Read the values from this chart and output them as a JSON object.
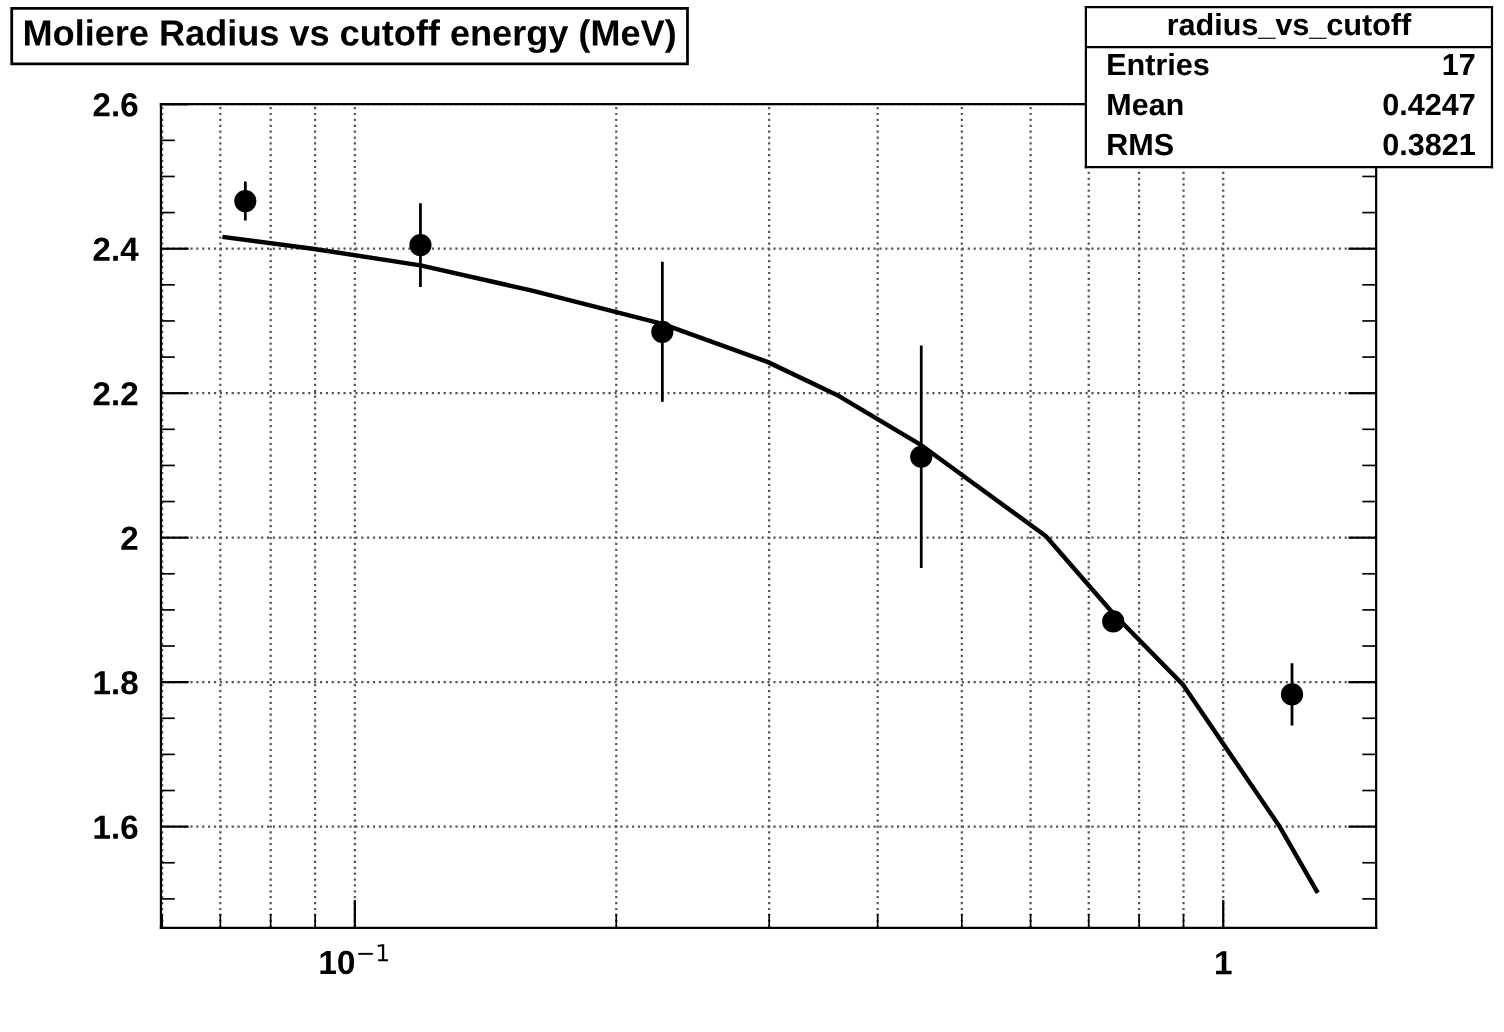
{
  "chart_data": {
    "type": "scatter",
    "title": "Moliere Radius vs cutoff energy (MeV)",
    "annotations": [
      "radius_vs_cutoff",
      "Entries",
      "17",
      "Mean",
      "0.4247",
      "RMS",
      "0.3821"
    ],
    "series": [
      {
        "color": "#000000",
        "marker": "circle",
        "x": [
          0.0748,
          0.119,
          0.226,
          0.449,
          0.747,
          1.2
        ],
        "values": [
          2.466,
          2.405,
          2.285,
          2.112,
          1.884,
          1.783
        ],
        "errors": [
          0.027,
          0.058,
          0.097,
          0.154,
          null,
          0.043
        ]
      },
      {
        "type": "line",
        "color": "#000000",
        "line_style": "solid",
        "x": [
          0.0708,
          0.0894,
          0.119,
          0.16,
          0.226,
          0.299,
          0.361,
          0.449,
          0.625,
          0.747,
          0.898,
          1.16,
          1.281
        ],
        "values": [
          2.416,
          2.4,
          2.377,
          2.342,
          2.296,
          2.243,
          2.196,
          2.128,
          2.002,
          1.895,
          1.797,
          1.601,
          1.511
        ]
      }
    ],
    "log": "x",
    "xlim": [
      0.0598,
      1.5
    ],
    "xticks": [
      {
        "value": 0.1,
        "label": "10$^{−1}$"
      },
      1
    ],
    "ylim": [
      1.46,
      2.6
    ],
    "yticks": [
      1.6,
      1.8,
      2,
      2.2,
      2.4,
      2.6
    ],
    "grid": true
  }
}
